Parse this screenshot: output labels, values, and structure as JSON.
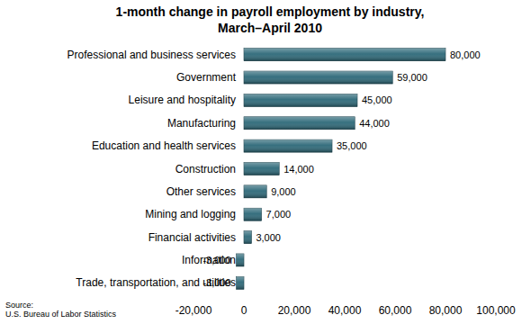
{
  "chart_data": {
    "type": "bar",
    "orientation": "horizontal",
    "title": "1-month change in payroll employment by industry,",
    "subtitle": "March–April 2010",
    "annotations": [
      "Source:",
      "U.S. Bureau of Labor Statistics"
    ],
    "categories": [
      "Professional and business services",
      "Government",
      "Leisure and hospitality",
      "Manufacturing",
      "Education and health services",
      "Construction",
      "Other services",
      "Mining and logging",
      "Financial activities",
      "Information",
      "Trade, transportation, and utilities"
    ],
    "values": [
      80000,
      59000,
      45000,
      44000,
      35000,
      14000,
      9000,
      7000,
      3000,
      -3000,
      -3000
    ],
    "value_labels": [
      "80,000",
      "59,000",
      "45,000",
      "44,000",
      "35,000",
      "14,000",
      "9,000",
      "7,000",
      "3,000",
      "-3,000",
      "-3,000"
    ],
    "data_labels": true,
    "color": "#2c6878",
    "grid": false,
    "xlim": [
      -20000,
      100000
    ],
    "xticks": [
      {
        "value": -20000,
        "label": "-20,000"
      },
      0,
      {
        "value": 20000,
        "label": "20,000"
      },
      {
        "value": 40000,
        "label": "40,000"
      },
      {
        "value": 60000,
        "label": "60,000"
      },
      {
        "value": 80000,
        "label": "80,000"
      },
      {
        "value": 100000,
        "label": "100,000"
      }
    ]
  }
}
